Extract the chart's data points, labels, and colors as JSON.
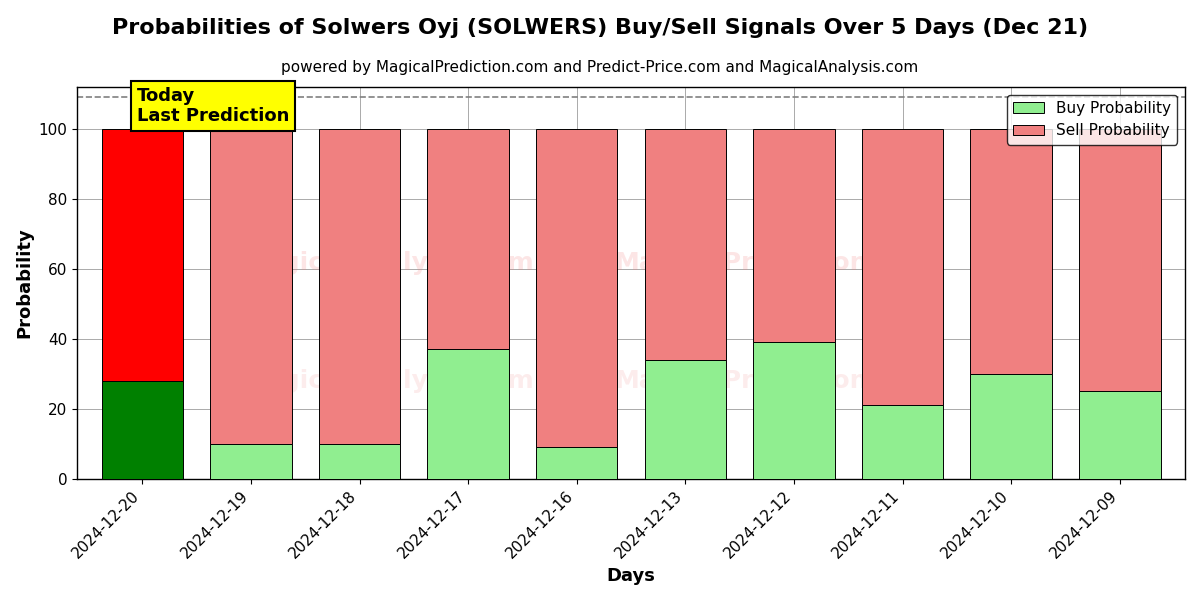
{
  "title": "Probabilities of Solwers Oyj (SOLWERS) Buy/Sell Signals Over 5 Days (Dec 21)",
  "subtitle": "powered by MagicalPrediction.com and Predict-Price.com and MagicalAnalysis.com",
  "xlabel": "Days",
  "ylabel": "Probability",
  "categories": [
    "2024-12-20",
    "2024-12-19",
    "2024-12-18",
    "2024-12-17",
    "2024-12-16",
    "2024-12-13",
    "2024-12-12",
    "2024-12-11",
    "2024-12-10",
    "2024-12-09"
  ],
  "buy_values": [
    28,
    10,
    10,
    37,
    9,
    34,
    39,
    21,
    30,
    25
  ],
  "sell_values": [
    72,
    90,
    90,
    63,
    91,
    66,
    61,
    79,
    70,
    75
  ],
  "buy_colors_per_bar": [
    "#008000",
    "#90EE90",
    "#90EE90",
    "#90EE90",
    "#90EE90",
    "#90EE90",
    "#90EE90",
    "#90EE90",
    "#90EE90",
    "#90EE90"
  ],
  "sell_colors_per_bar": [
    "#FF0000",
    "#F08080",
    "#F08080",
    "#F08080",
    "#F08080",
    "#F08080",
    "#F08080",
    "#F08080",
    "#F08080",
    "#F08080"
  ],
  "buy_legend_color": "#90EE90",
  "sell_legend_color": "#F08080",
  "ylim": [
    0,
    112
  ],
  "yticks": [
    0,
    20,
    40,
    60,
    80,
    100
  ],
  "dashed_line_y": 109,
  "today_box_color": "#FFFF00",
  "today_label": "Today\nLast Prediction",
  "background_color": "#ffffff",
  "grid_color": "#aaaaaa",
  "title_fontsize": 16,
  "subtitle_fontsize": 11,
  "label_fontsize": 13,
  "tick_fontsize": 11,
  "legend_fontsize": 11,
  "bar_width": 0.75
}
